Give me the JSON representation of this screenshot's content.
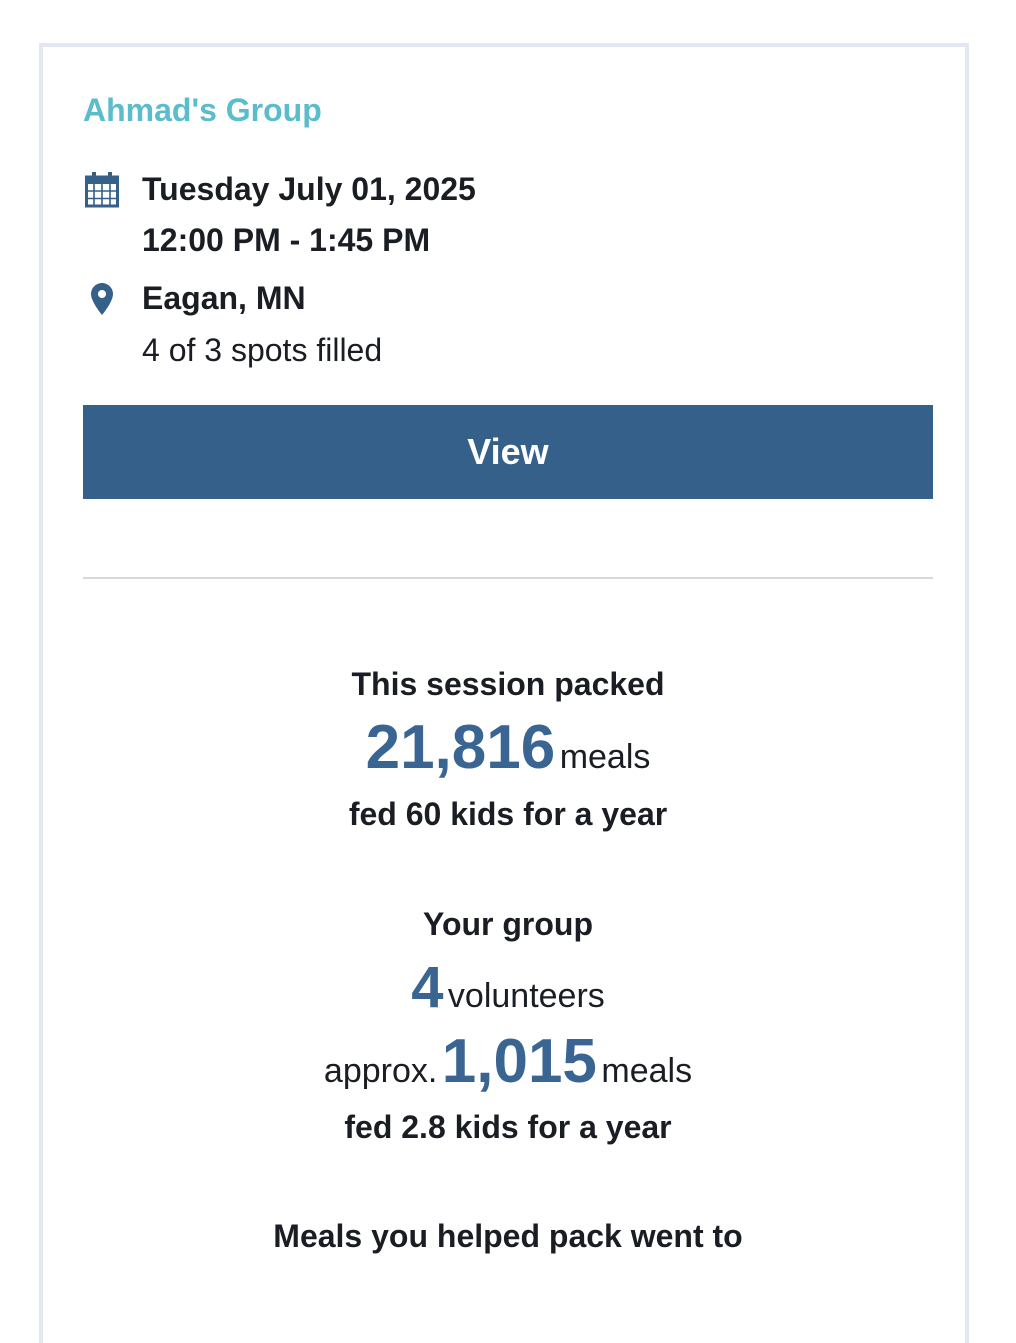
{
  "group_name": "Ahmad's Group",
  "event": {
    "date": "Tuesday July 01, 2025",
    "time": "12:00 PM - 1:45 PM",
    "location": "Eagan, MN",
    "spots": "4 of 3 spots filled",
    "icons": {
      "date": "calendar-icon",
      "location": "map-pin-icon"
    }
  },
  "view_button": "View",
  "session": {
    "heading": "This session packed",
    "meals_count": "21,816",
    "meals_unit": "meals",
    "impact": "fed 60 kids for a year"
  },
  "group": {
    "heading": "Your group",
    "volunteers_count": "4",
    "volunteers_unit": "volunteers",
    "approx_label": "approx.",
    "meals_count": "1,015",
    "meals_unit": "meals",
    "impact": "fed 2.8 kids for a year"
  },
  "destination_heading": "Meals you helped pack went to",
  "colors": {
    "accent": "#5bbccc",
    "primary": "#35608a",
    "number": "#3a6593"
  }
}
